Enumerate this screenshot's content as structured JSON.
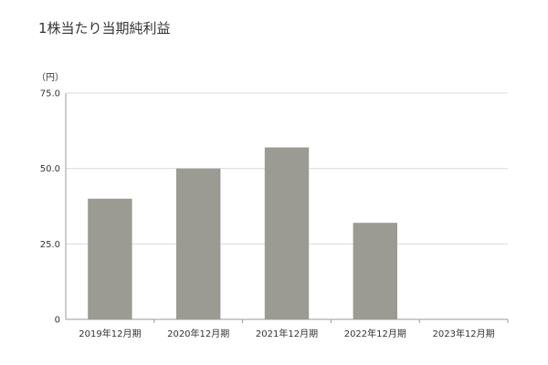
{
  "chart_data": {
    "type": "bar",
    "title": "1株当たり当期純利益",
    "unit": "（円）",
    "categories": [
      "2019年12月期",
      "2020年12月期",
      "2021年12月期",
      "2022年12月期",
      "2023年12月期"
    ],
    "values": [
      40.0,
      50.0,
      57.0,
      32.0,
      null
    ],
    "ylim": [
      0,
      75
    ],
    "yticks": [
      0,
      25,
      50,
      75
    ],
    "ytick_labels": [
      "0",
      "25.0",
      "50.0",
      "75.0"
    ],
    "grid": true,
    "bar_color": "#9b9b94",
    "axis_color": "#999999",
    "grid_color": "#dcdcdc"
  }
}
